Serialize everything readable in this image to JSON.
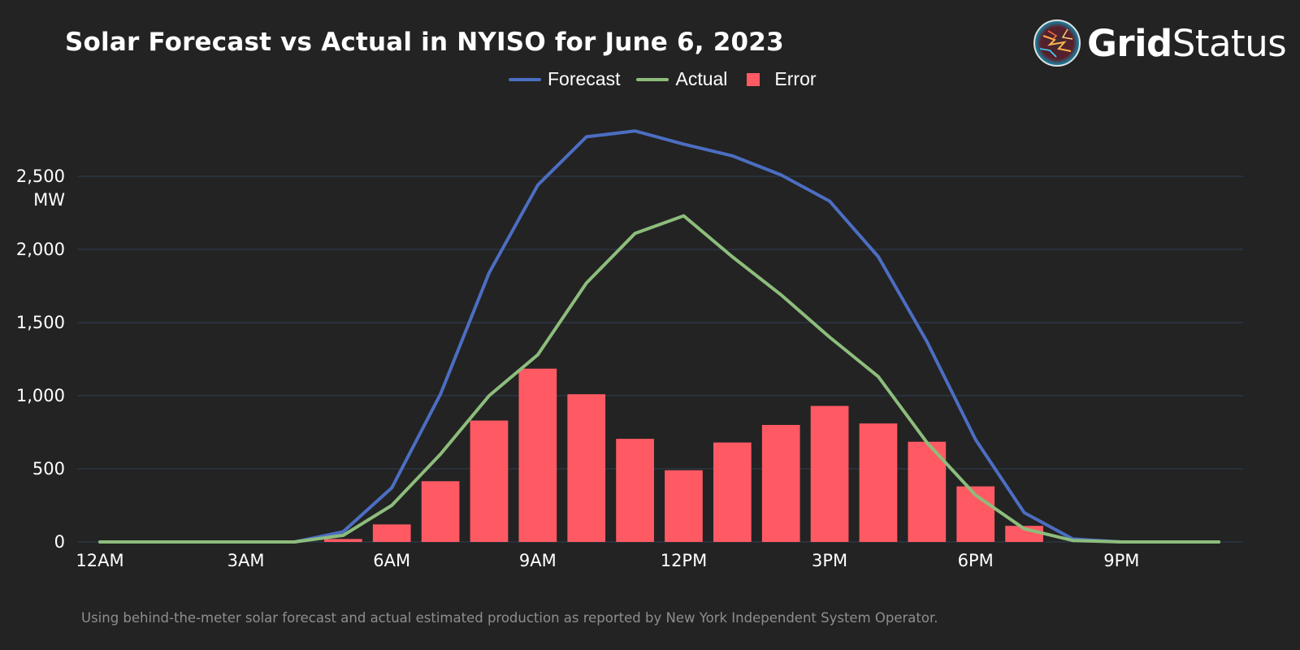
{
  "title": "Solar Forecast vs Actual in NYISO for June 6, 2023",
  "logo": {
    "name": "gridstatus-logo",
    "part1": "Grid",
    "part2": "Status"
  },
  "footnote": "Using behind-the-meter solar forecast and actual estimated production as reported by New York Independent System Operator.",
  "colors": {
    "forecast": "#4c6ec2",
    "actual": "#8dbd7c",
    "error": "#ff5a64",
    "grid": "#2d3a4a",
    "background": "#232323"
  },
  "chart_data": {
    "type": "line",
    "title": "Solar Forecast vs Actual in NYISO for June 6, 2023",
    "ylabel": "MW",
    "xlabel": "",
    "ylim": [
      0,
      2900
    ],
    "xlim": [
      0,
      23.5
    ],
    "yticks": [
      {
        "value": 0,
        "label": "0"
      },
      {
        "value": 500,
        "label": "500"
      },
      {
        "value": 1000,
        "label": "1,000"
      },
      {
        "value": 1500,
        "label": "1,500"
      },
      {
        "value": 2000,
        "label": "2,000"
      },
      {
        "value": 2500,
        "label": "2,500"
      }
    ],
    "xticks": [
      {
        "value": 0,
        "label": "12AM"
      },
      {
        "value": 3,
        "label": "3AM"
      },
      {
        "value": 6,
        "label": "6AM"
      },
      {
        "value": 9,
        "label": "9AM"
      },
      {
        "value": 12,
        "label": "12PM"
      },
      {
        "value": 15,
        "label": "3PM"
      },
      {
        "value": 18,
        "label": "6PM"
      },
      {
        "value": 21,
        "label": "9PM"
      }
    ],
    "hours": [
      0,
      1,
      2,
      3,
      4,
      5,
      6,
      7,
      8,
      9,
      10,
      11,
      12,
      13,
      14,
      15,
      16,
      17,
      18,
      19,
      20,
      21,
      22,
      23
    ],
    "series": [
      {
        "name": "Forecast",
        "kind": "line",
        "values": [
          0,
          0,
          0,
          0,
          0,
          70,
          370,
          1010,
          1840,
          2440,
          2770,
          2810,
          2720,
          2640,
          2510,
          2330,
          1950,
          1370,
          700,
          200,
          20,
          0,
          0,
          0
        ]
      },
      {
        "name": "Actual",
        "kind": "line",
        "values": [
          0,
          0,
          0,
          0,
          0,
          45,
          250,
          600,
          1000,
          1280,
          1770,
          2110,
          2230,
          1950,
          1690,
          1400,
          1130,
          680,
          320,
          90,
          10,
          0,
          0,
          0
        ]
      },
      {
        "name": "Error",
        "kind": "bar",
        "values": [
          0,
          0,
          0,
          0,
          0,
          20,
          120,
          415,
          830,
          1185,
          1010,
          705,
          490,
          680,
          800,
          930,
          810,
          685,
          380,
          110,
          0,
          0,
          0,
          0
        ]
      }
    ],
    "legend": [
      {
        "label": "Forecast",
        "type": "line"
      },
      {
        "label": "Actual",
        "type": "line"
      },
      {
        "label": "Error",
        "type": "box"
      }
    ]
  }
}
